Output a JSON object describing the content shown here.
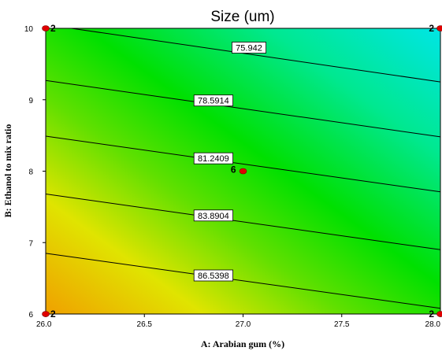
{
  "colors": {
    "low": "#00e5e5",
    "mid": "#00e000",
    "high": "#f0e000",
    "max": "#f0a000",
    "design_point": "#e00000"
  },
  "chart_data": {
    "type": "contour",
    "title": "Size (um)",
    "xlabel": "A: Arabian gum (%)",
    "ylabel": "B: Ethanol to mix ratio",
    "xlim": [
      26.0,
      28.0
    ],
    "ylim": [
      6,
      10
    ],
    "x_ticks": [
      "26.0",
      "26.5",
      "27.0",
      "27.5",
      "28.0"
    ],
    "y_ticks": [
      "6",
      "7",
      "8",
      "9",
      "10"
    ],
    "contours": [
      {
        "label": "75.942",
        "points": [
          [
            26.13,
            10.0
          ],
          [
            28.0,
            9.25
          ]
        ],
        "label_at": [
          27.03,
          9.73
        ]
      },
      {
        "label": "78.5914",
        "points": [
          [
            26.0,
            9.27
          ],
          [
            28.0,
            8.48
          ]
        ],
        "label_at": [
          26.85,
          8.99
        ]
      },
      {
        "label": "81.2409",
        "points": [
          [
            26.0,
            8.49
          ],
          [
            28.0,
            7.71
          ]
        ],
        "label_at": [
          26.85,
          8.18
        ]
      },
      {
        "label": "83.8904",
        "points": [
          [
            26.0,
            7.68
          ],
          [
            28.0,
            6.9
          ]
        ],
        "label_at": [
          26.85,
          7.38
        ]
      },
      {
        "label": "86.5398",
        "points": [
          [
            26.0,
            6.85
          ],
          [
            28.0,
            6.08
          ]
        ],
        "label_at": [
          26.85,
          6.54
        ]
      }
    ],
    "design_points": [
      {
        "x": 26.0,
        "y": 10,
        "label": "2"
      },
      {
        "x": 28.0,
        "y": 10,
        "label": "2"
      },
      {
        "x": 27.0,
        "y": 8,
        "label": "6"
      },
      {
        "x": 26.0,
        "y": 6,
        "label": "2"
      },
      {
        "x": 28.0,
        "y": 6,
        "label": "2"
      }
    ]
  }
}
